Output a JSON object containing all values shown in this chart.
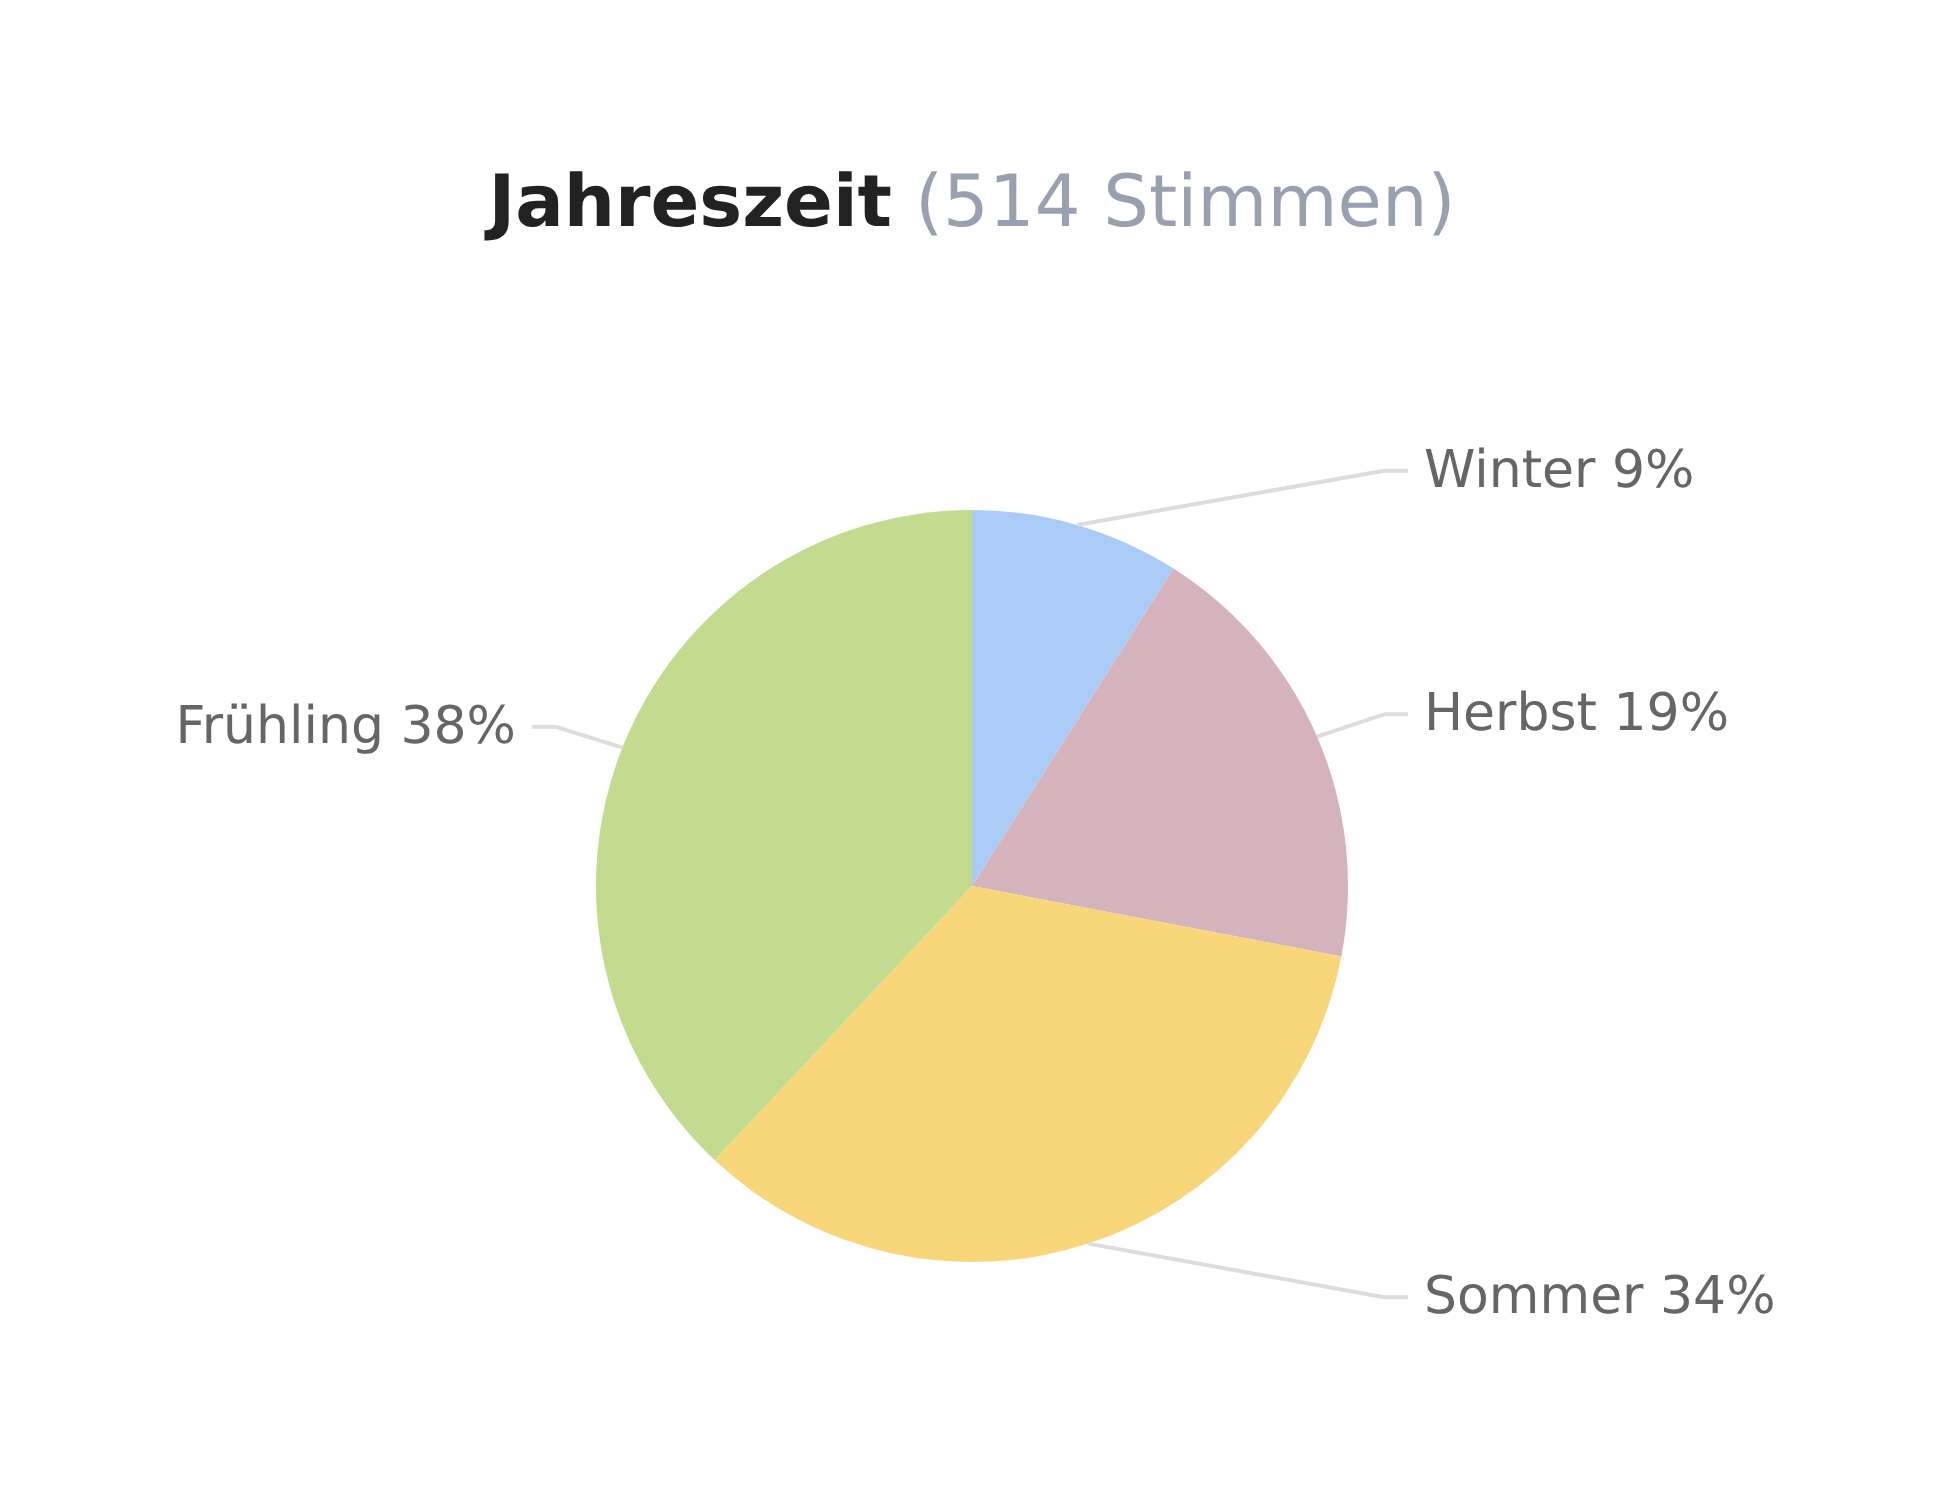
{
  "chart_data": {
    "type": "pie",
    "title": "Jahreszeit",
    "subtitle": "(514 Stimmen)",
    "categories": [
      "Winter",
      "Herbst",
      "Sommer",
      "Frühling"
    ],
    "values": [
      9,
      19,
      34,
      38
    ],
    "value_labels": [
      "9%",
      "19%",
      "34%",
      "38%"
    ],
    "colors": [
      "#aacbf5",
      "#d4b3bc",
      "#f7d77a",
      "#c2db8e"
    ]
  }
}
